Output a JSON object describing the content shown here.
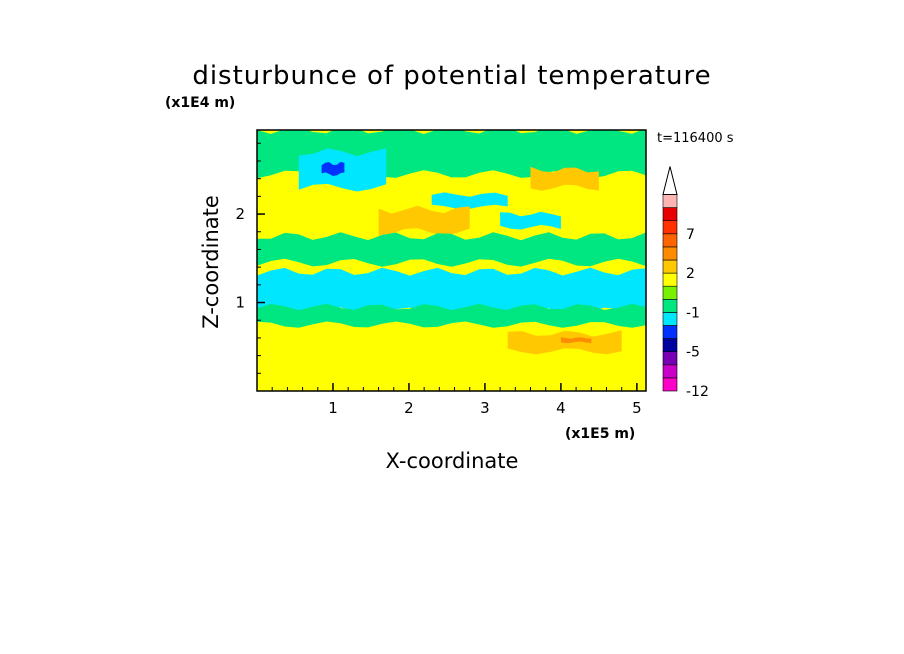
{
  "chart_data": {
    "type": "heatmap",
    "title": "disturbunce of potential temperature",
    "xlabel": "X-coordinate",
    "ylabel": "Z-coordinate",
    "x_scale_label": "(x1E5 m)",
    "y_scale_label": "(x1E4 m)",
    "time_label": "t=116400 s",
    "xlim": [
      0,
      5.12
    ],
    "ylim": [
      0,
      2.95
    ],
    "x_ticks": [
      1,
      2,
      3,
      4,
      5
    ],
    "x_tick_labels": [
      "1",
      "2",
      "3",
      "4",
      "5"
    ],
    "y_ticks": [
      1,
      2
    ],
    "y_tick_labels": [
      "1",
      "2"
    ],
    "colorbar": {
      "levels": [
        -12,
        -9,
        -7,
        -5,
        -3,
        -2,
        -1,
        0,
        1,
        2,
        3,
        5,
        7,
        9,
        12
      ],
      "colors": [
        "#ff00c8",
        "#c800c8",
        "#7800b4",
        "#0000a0",
        "#0032ff",
        "#00e6ff",
        "#00e680",
        "#78f000",
        "#ffff00",
        "#ffc800",
        "#ff8c00",
        "#ff6400",
        "#ff3200",
        "#e60000",
        "#ffb4b4"
      ],
      "tick_labels": [
        "7",
        "2",
        "-1",
        "-5",
        "-12"
      ],
      "tick_values": [
        7,
        2,
        -1,
        -5,
        -12
      ],
      "extend": "max"
    },
    "background_level": "yellow",
    "regions": [
      {
        "level": 0,
        "color": "#00e680",
        "x": [
          0,
          5.12
        ],
        "z": [
          2.45,
          2.95
        ]
      },
      {
        "level": -1,
        "color": "#00e6ff",
        "x": [
          0.55,
          1.7
        ],
        "z": [
          2.3,
          2.7
        ]
      },
      {
        "level": -4,
        "color": "#0032ff",
        "x": [
          0.85,
          1.15
        ],
        "z": [
          2.45,
          2.57
        ]
      },
      {
        "level": -1,
        "color": "#00e6ff",
        "x": [
          2.3,
          3.3
        ],
        "z": [
          2.08,
          2.22
        ]
      },
      {
        "level": -1,
        "color": "#00e6ff",
        "x": [
          3.2,
          4.0
        ],
        "z": [
          1.85,
          2.0
        ]
      },
      {
        "level": 2,
        "color": "#ffc800",
        "x": [
          3.6,
          4.5
        ],
        "z": [
          2.3,
          2.5
        ]
      },
      {
        "level": 2,
        "color": "#ffc800",
        "x": [
          1.6,
          2.8
        ],
        "z": [
          1.8,
          2.05
        ]
      },
      {
        "level": 0,
        "color": "#00e680",
        "x": [
          0,
          5.12
        ],
        "z": [
          1.45,
          1.75
        ]
      },
      {
        "level": -1,
        "color": "#00e6ff",
        "x": [
          0,
          5.12
        ],
        "z": [
          0.9,
          1.35
        ]
      },
      {
        "level": 0,
        "color": "#00e680",
        "x": [
          0,
          5.12
        ],
        "z": [
          0.75,
          0.95
        ]
      },
      {
        "level": 2,
        "color": "#ffc800",
        "x": [
          3.3,
          4.8
        ],
        "z": [
          0.45,
          0.65
        ]
      },
      {
        "level": 3,
        "color": "#ff8c00",
        "x": [
          4.0,
          4.4
        ],
        "z": [
          0.55,
          0.6
        ]
      }
    ]
  }
}
